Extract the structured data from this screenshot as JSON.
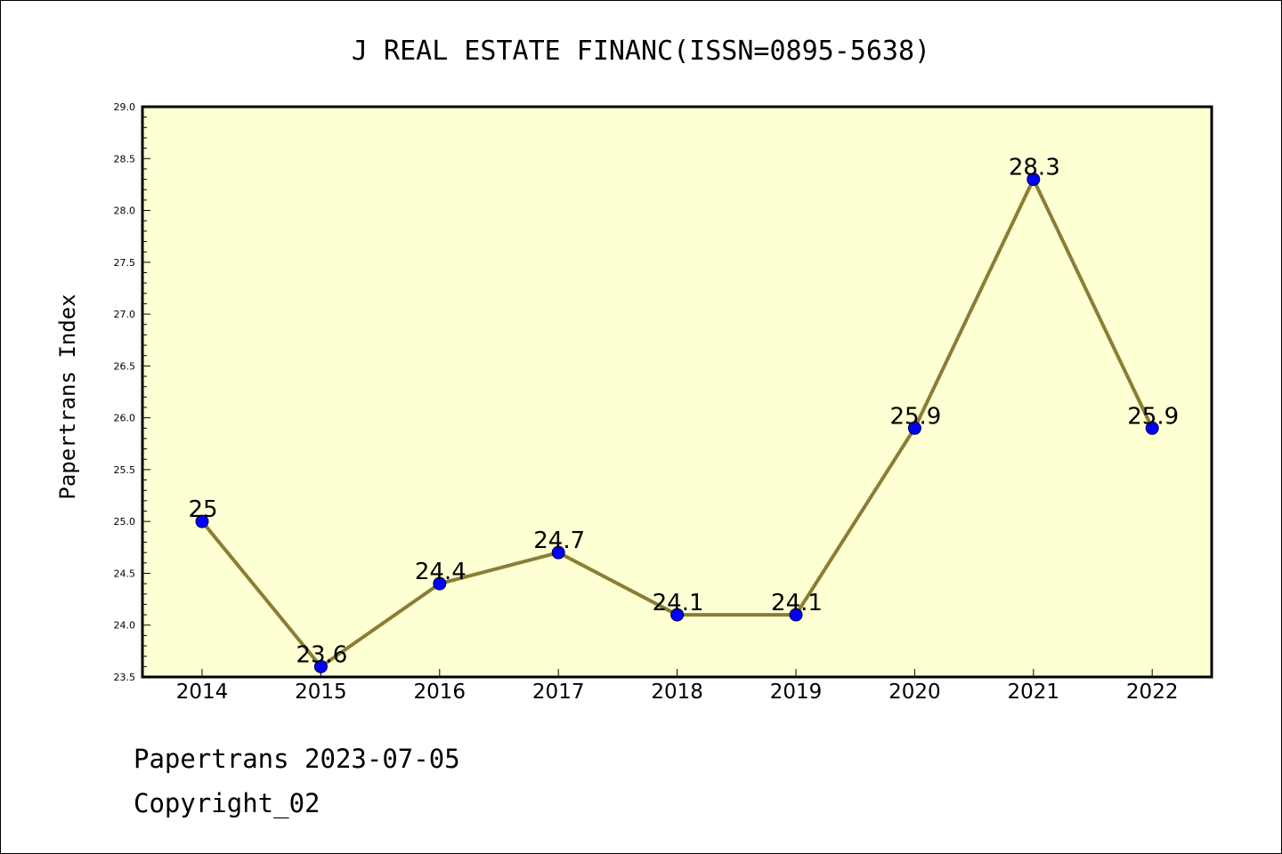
{
  "chart_data": {
    "type": "line",
    "title": "J REAL ESTATE FINANC(ISSN=0895-5638)",
    "ylabel": "Papertrans Index",
    "xlabel": "",
    "categories": [
      "2014",
      "2015",
      "2016",
      "2017",
      "2018",
      "2019",
      "2020",
      "2021",
      "2022"
    ],
    "values": [
      25,
      23.6,
      24.4,
      24.7,
      24.1,
      24.1,
      25.9,
      28.3,
      25.9
    ],
    "data_labels": [
      "25",
      "23.6",
      "24.4",
      "24.7",
      "24.1",
      "24.1",
      "25.9",
      "28.3",
      "25.9"
    ],
    "ylim": [
      23.5,
      29.0
    ],
    "yticks": [
      "23.5",
      "24.0",
      "24.5",
      "25.0",
      "25.5",
      "26.0",
      "26.5",
      "27.0",
      "27.5",
      "28.0",
      "28.5",
      "29.0"
    ],
    "grid": false,
    "line_color": "#8b7d35",
    "marker_color": "#0000ff",
    "plot_background": "#ffffd4"
  },
  "footer": {
    "line1": "Papertrans 2023-07-05",
    "line2": "Copyright_02"
  }
}
